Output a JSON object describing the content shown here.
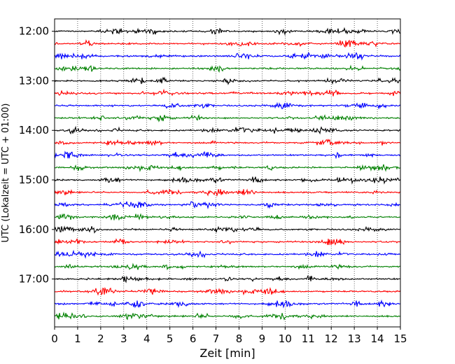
{
  "chart_data": {
    "type": "line",
    "title": "",
    "xlabel": "Zeit  [min]",
    "ylabel": "UTC (Lokalzeit = UTC + 01:00)",
    "xlim": [
      0,
      15
    ],
    "xticks": [
      0,
      1,
      2,
      3,
      4,
      5,
      6,
      7,
      8,
      9,
      10,
      11,
      12,
      13,
      14,
      15
    ],
    "ylim_minutes": [
      705,
      1078
    ],
    "yticks": [
      {
        "label": "12:00",
        "minutes": 720
      },
      {
        "label": "13:00",
        "minutes": 780
      },
      {
        "label": "14:00",
        "minutes": 840
      },
      {
        "label": "15:00",
        "minutes": 900
      },
      {
        "label": "16:00",
        "minutes": 960
      },
      {
        "label": "17:00",
        "minutes": 1020
      }
    ],
    "grid": "vertical-dotted",
    "trace_interval_minutes": 15,
    "color_cycle": [
      "#000000",
      "#ff0000",
      "#0000ff",
      "#008000"
    ],
    "traces_start_utc": [
      "12:00",
      "12:15",
      "12:30",
      "12:45",
      "13:00",
      "13:15",
      "13:30",
      "13:45",
      "14:00",
      "14:15",
      "14:30",
      "14:45",
      "15:00",
      "15:15",
      "15:30",
      "15:45",
      "16:00",
      "16:15",
      "16:30",
      "16:45",
      "17:00",
      "17:15",
      "17:30",
      "17:45"
    ]
  }
}
